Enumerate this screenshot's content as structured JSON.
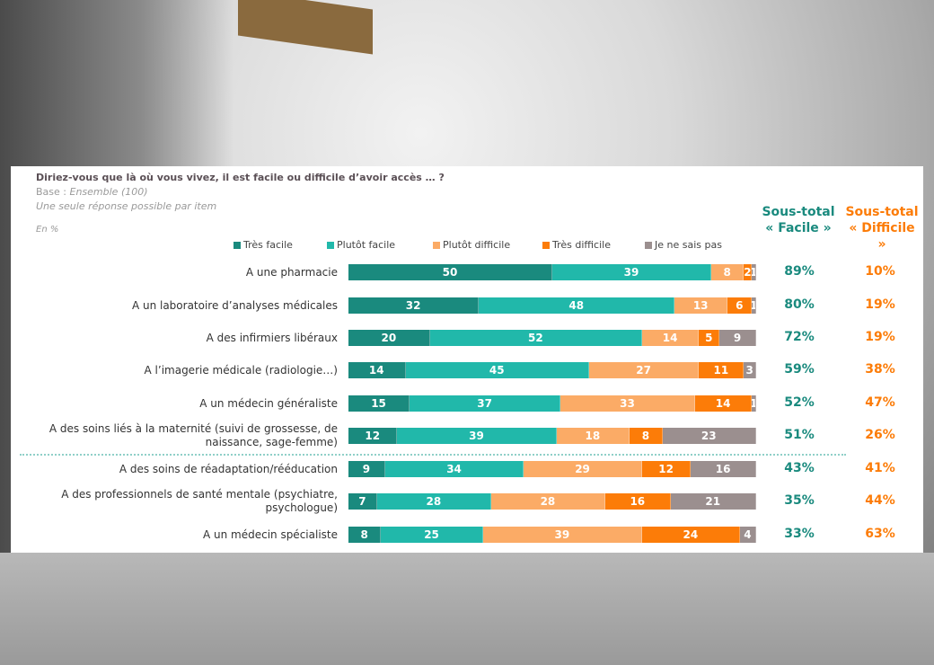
{
  "question": "Diriez-vous que là où vous vivez, il est facile ou difficile d’avoir accès … ?",
  "base_label": "Base : ",
  "base_value": "Ensemble (100)",
  "note": "Une seule réponse possible par item",
  "unit": "En %",
  "subtotal_easy_header": [
    "Sous-total",
    "« Facile »"
  ],
  "subtotal_hard_header": [
    "Sous-total",
    "« Difficile »"
  ],
  "colors": {
    "tres_facile": "#1a8a7e",
    "plutot_facile": "#21b8aa",
    "plutot_difficile": "#fbab66",
    "tres_difficile": "#fc7c08",
    "nsp": "#9b8f8f",
    "easy_text": "#1a8a7e",
    "hard_text": "#fc7c08"
  },
  "chart_data": {
    "type": "bar",
    "orientation": "horizontal-stacked-100",
    "series": [
      {
        "name": "Très facile",
        "values": [
          50,
          32,
          20,
          14,
          15,
          12,
          9,
          7,
          8
        ]
      },
      {
        "name": "Plutôt facile",
        "values": [
          39,
          48,
          52,
          45,
          37,
          39,
          34,
          28,
          25
        ]
      },
      {
        "name": "Plutôt difficile",
        "values": [
          8,
          13,
          14,
          27,
          33,
          18,
          29,
          28,
          39
        ]
      },
      {
        "name": "Très difficile",
        "values": [
          2,
          6,
          5,
          11,
          14,
          8,
          12,
          16,
          24
        ]
      },
      {
        "name": "Je ne sais pas",
        "values": [
          1,
          1,
          9,
          3,
          1,
          23,
          16,
          21,
          4
        ]
      }
    ],
    "categories": [
      "A une pharmacie",
      "A un laboratoire d’analyses médicales",
      "A des infirmiers libéraux",
      "A l’imagerie médicale (radiologie…)",
      "A un médecin généraliste",
      "A des soins liés à la maternité (suivi de grossesse, de naissance, sage-femme)",
      "A des soins de réadaptation/rééducation",
      "A des professionnels de santé mentale (psychiatre, psychologue)",
      "A un médecin spécialiste"
    ],
    "subtotal_facile": [
      "89%",
      "80%",
      "72%",
      "59%",
      "52%",
      "51%",
      "43%",
      "35%",
      "33%"
    ],
    "subtotal_difficile": [
      "10%",
      "19%",
      "19%",
      "38%",
      "47%",
      "26%",
      "41%",
      "44%",
      "63%"
    ],
    "legend_position": "top",
    "xlim": [
      0,
      100
    ]
  }
}
